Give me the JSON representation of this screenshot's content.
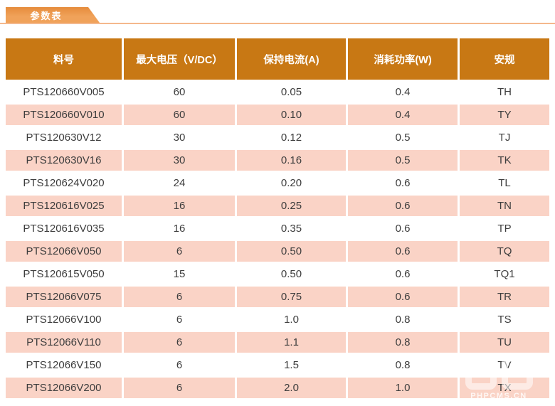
{
  "section": {
    "tab_label": "参数表"
  },
  "table": {
    "columns": [
      "料号",
      "最大电压（V/DC）",
      "保持电流(A)",
      "消耗功率(W)",
      "安规"
    ],
    "rows": [
      [
        "PTS120660V005",
        "60",
        "0.05",
        "0.4",
        "TH"
      ],
      [
        "PTS120660V010",
        "60",
        "0.10",
        "0.4",
        "TY"
      ],
      [
        "PTS120630V12",
        "30",
        "0.12",
        "0.5",
        "TJ"
      ],
      [
        "PTS120630V16",
        "30",
        "0.16",
        "0.5",
        "TK"
      ],
      [
        "PTS120624V020",
        "24",
        "0.20",
        "0.6",
        "TL"
      ],
      [
        "PTS120616V025",
        "16",
        "0.25",
        "0.6",
        "TN"
      ],
      [
        "PTS120616V035",
        "16",
        "0.35",
        "0.6",
        "TP"
      ],
      [
        "PTS12066V050",
        "6",
        "0.50",
        "0.6",
        "TQ"
      ],
      [
        "PTS120615V050",
        "15",
        "0.50",
        "0.6",
        "TQ1"
      ],
      [
        "PTS12066V075",
        "6",
        "0.75",
        "0.6",
        "TR"
      ],
      [
        "PTS12066V100",
        "6",
        "1.0",
        "0.8",
        "TS"
      ],
      [
        "PTS12066V110",
        "6",
        "1.1",
        "0.8",
        "TU"
      ],
      [
        "PTS12066V150",
        "6",
        "1.5",
        "0.8",
        "TV"
      ],
      [
        "PTS12066V200",
        "6",
        "2.0",
        "1.0",
        "TX"
      ]
    ]
  },
  "watermark": {
    "text": "PHPCMS.CN"
  },
  "colors": {
    "header_bg": "#C87814",
    "header_text": "#FFFFFF",
    "tab_bg": "#F0A25A",
    "tab_dark": "#E68C3C",
    "underline": "#F4B88C",
    "row_bg": "#FFFFFF",
    "row_alt": "#FAD3C6",
    "body_text": "#3D3D3D"
  }
}
